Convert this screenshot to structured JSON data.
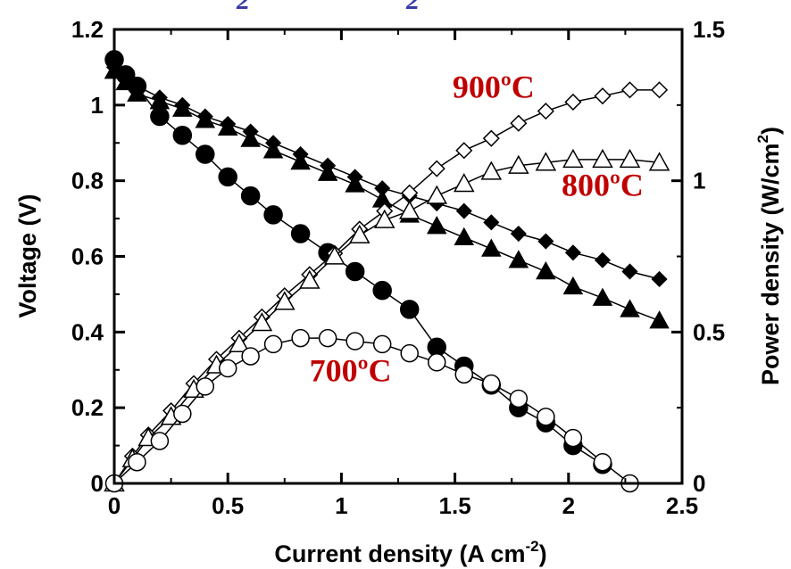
{
  "chart_data": {
    "type": "line",
    "xlabel": "Current density (A cm",
    "xlabel_sup": "-2",
    "xlabel_end": ")",
    "ylabel": "Voltage (V)",
    "y2label": "Power density (W/cm",
    "y2label_sup": "2",
    "y2label_end": ")",
    "xlim": [
      0,
      2.5
    ],
    "ylim": [
      0,
      1.2
    ],
    "y2lim": [
      0,
      1.5
    ],
    "xticks": [
      "0",
      "0.5",
      "1",
      "1.5",
      "2",
      "2.5"
    ],
    "yticks": [
      "0",
      "0.2",
      "0.4",
      "0.6",
      "0.8",
      "1",
      "1.2"
    ],
    "y2ticks": [
      "0",
      "0.5",
      "1",
      "1.5"
    ],
    "clipped_title_glyphs": [
      "2",
      "2"
    ],
    "annotations": [
      {
        "text": "900ºC",
        "x": 1.67,
        "y": 1.02
      },
      {
        "text": "800ºC",
        "x": 2.15,
        "y": 0.76
      },
      {
        "text": "700ºC",
        "x": 1.04,
        "y": 0.27
      }
    ],
    "series": [
      {
        "marker": "diamond",
        "fill": "filled",
        "axis": "left",
        "x": [
          0,
          0.05,
          0.1,
          0.2,
          0.3,
          0.4,
          0.5,
          0.6,
          0.7,
          0.82,
          0.94,
          1.06,
          1.18,
          1.3,
          1.42,
          1.54,
          1.66,
          1.78,
          1.9,
          2.02,
          2.15,
          2.27,
          2.4
        ],
        "y": [
          1.1,
          1.08,
          1.05,
          1.02,
          1.0,
          0.97,
          0.95,
          0.93,
          0.9,
          0.87,
          0.84,
          0.81,
          0.78,
          0.76,
          0.74,
          0.72,
          0.69,
          0.66,
          0.64,
          0.61,
          0.59,
          0.56,
          0.54
        ]
      },
      {
        "marker": "triangle",
        "fill": "filled",
        "axis": "left",
        "x": [
          0,
          0.05,
          0.1,
          0.2,
          0.3,
          0.4,
          0.5,
          0.6,
          0.7,
          0.82,
          0.94,
          1.06,
          1.18,
          1.3,
          1.42,
          1.54,
          1.66,
          1.78,
          1.9,
          2.02,
          2.15,
          2.27,
          2.4
        ],
        "y": [
          1.09,
          1.06,
          1.03,
          1.01,
          0.99,
          0.96,
          0.94,
          0.91,
          0.88,
          0.85,
          0.82,
          0.79,
          0.75,
          0.71,
          0.68,
          0.65,
          0.62,
          0.59,
          0.56,
          0.52,
          0.49,
          0.46,
          0.43
        ]
      },
      {
        "marker": "circle",
        "fill": "filled",
        "axis": "left",
        "x": [
          0,
          0.05,
          0.1,
          0.2,
          0.3,
          0.4,
          0.5,
          0.6,
          0.7,
          0.82,
          0.94,
          1.06,
          1.18,
          1.3,
          1.42,
          1.54,
          1.66,
          1.78,
          1.9,
          2.02,
          2.15
        ],
        "y": [
          1.12,
          1.08,
          1.05,
          0.97,
          0.92,
          0.87,
          0.81,
          0.76,
          0.71,
          0.66,
          0.61,
          0.56,
          0.51,
          0.46,
          0.36,
          0.31,
          0.26,
          0.2,
          0.16,
          0.1,
          0.05
        ]
      },
      {
        "marker": "diamond",
        "fill": "open",
        "axis": "right",
        "x": [
          0,
          0.08,
          0.15,
          0.25,
          0.35,
          0.45,
          0.55,
          0.65,
          0.75,
          0.86,
          0.97,
          1.08,
          1.19,
          1.3,
          1.42,
          1.54,
          1.66,
          1.78,
          1.9,
          2.02,
          2.15,
          2.27,
          2.4
        ],
        "y": [
          0.0,
          0.09,
          0.16,
          0.24,
          0.33,
          0.41,
          0.48,
          0.55,
          0.62,
          0.69,
          0.76,
          0.84,
          0.9,
          0.96,
          1.04,
          1.1,
          1.14,
          1.19,
          1.23,
          1.26,
          1.28,
          1.3,
          1.3
        ]
      },
      {
        "marker": "triangle",
        "fill": "open",
        "axis": "right",
        "x": [
          0,
          0.08,
          0.15,
          0.25,
          0.35,
          0.45,
          0.55,
          0.65,
          0.75,
          0.86,
          0.97,
          1.08,
          1.19,
          1.3,
          1.42,
          1.54,
          1.66,
          1.78,
          1.9,
          2.02,
          2.15,
          2.27,
          2.4
        ],
        "y": [
          0.0,
          0.08,
          0.15,
          0.22,
          0.31,
          0.39,
          0.46,
          0.53,
          0.6,
          0.67,
          0.75,
          0.82,
          0.87,
          0.9,
          0.95,
          0.99,
          1.03,
          1.05,
          1.06,
          1.07,
          1.07,
          1.07,
          1.06
        ]
      },
      {
        "marker": "circle",
        "fill": "open",
        "axis": "right",
        "x": [
          0,
          0.1,
          0.2,
          0.3,
          0.4,
          0.5,
          0.6,
          0.7,
          0.82,
          0.94,
          1.06,
          1.18,
          1.3,
          1.42,
          1.54,
          1.66,
          1.78,
          1.9,
          2.02,
          2.15,
          2.27
        ],
        "y": [
          0.0,
          0.07,
          0.14,
          0.23,
          0.32,
          0.38,
          0.42,
          0.46,
          0.48,
          0.48,
          0.47,
          0.46,
          0.43,
          0.4,
          0.36,
          0.33,
          0.28,
          0.22,
          0.15,
          0.07,
          0.0
        ]
      }
    ]
  }
}
